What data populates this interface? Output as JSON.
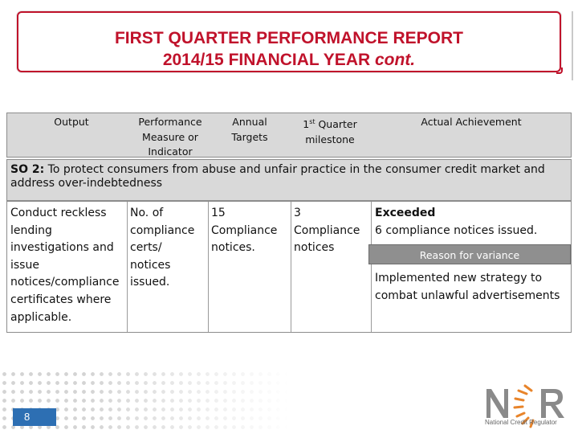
{
  "title": {
    "line1": "FIRST QUARTER PERFORMANCE REPORT",
    "line2_main": "2014/15 FINANCIAL YEAR ",
    "line2_italic": "cont."
  },
  "table": {
    "headers": {
      "output": "Output",
      "measure": [
        "Performance",
        "Measure or",
        "Indicator"
      ],
      "targets": [
        "Annual",
        "Targets"
      ],
      "milestone_num": "1",
      "milestone_sup": "st",
      "milestone_rest": " Quarter",
      "milestone_line2": "milestone",
      "achievement": "Actual Achievement"
    },
    "strategic_objective": {
      "code": "SO 2:",
      "text": " To protect consumers from abuse and unfair practice in the consumer credit market and address over-indebtedness"
    },
    "row": {
      "output": [
        "Conduct reckless",
        "lending",
        "investigations and",
        "issue",
        "notices/compliance",
        "certificates where",
        "applicable."
      ],
      "measure": [
        "No. of",
        "compliance",
        "certs/",
        "notices",
        "issued."
      ],
      "annual_target": [
        "15",
        "Compliance",
        "notices."
      ],
      "q1_milestone": [
        "3",
        "Compliance",
        "notices"
      ],
      "achievement_status": "Exceeded",
      "achievement_detail": "6 compliance notices issued.",
      "reason_label": "Reason for variance",
      "reason_text": [
        "Implemented new strategy to",
        "combat unlawful advertisements"
      ]
    }
  },
  "footer": {
    "page_number": "8",
    "logo_text": "NCR",
    "logo_subtitle": "National Credit Regulator"
  },
  "colors": {
    "title_red": "#c0122b",
    "header_gray": "#d9d9d9",
    "reason_gray": "#8f8f8f",
    "page_blue": "#2d6fb3",
    "logo_orange": "#e8842a"
  }
}
